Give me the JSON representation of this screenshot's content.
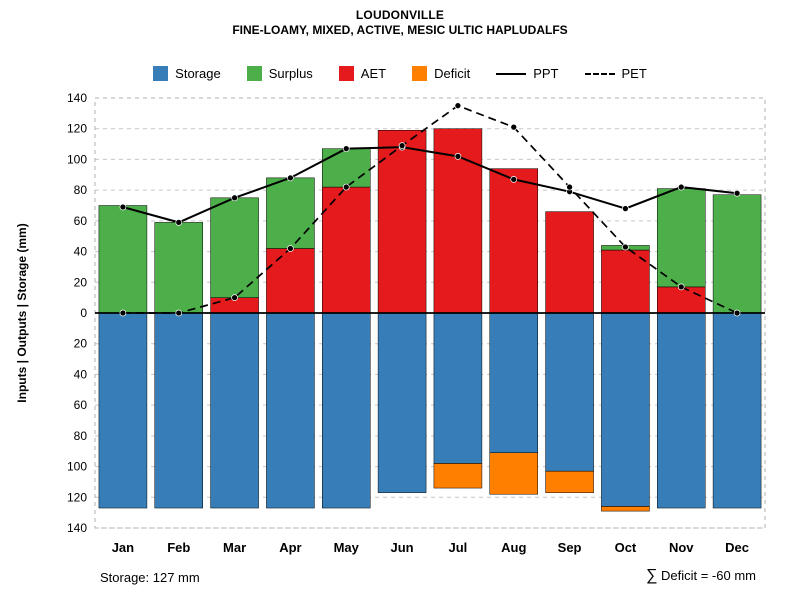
{
  "header": {
    "title": "LOUDONVILLE",
    "subtitle": "FINE-LOAMY, MIXED, ACTIVE, MESIC ULTIC HAPLUDALFS"
  },
  "legend": {
    "items": [
      {
        "label": "Storage",
        "kind": "swatch",
        "color": "#377EB8"
      },
      {
        "label": "Surplus",
        "kind": "swatch",
        "color": "#4DAF4A"
      },
      {
        "label": "AET",
        "kind": "swatch",
        "color": "#E41A1C"
      },
      {
        "label": "Deficit",
        "kind": "swatch",
        "color": "#FF7F00"
      },
      {
        "label": "PPT",
        "kind": "line",
        "style": "solid"
      },
      {
        "label": "PET",
        "kind": "line",
        "style": "dashed"
      }
    ]
  },
  "footer": {
    "storage_note": "Storage: 127 mm",
    "deficit_sigma": "∑",
    "deficit_note": " Deficit = -60 mm"
  },
  "chart_data": {
    "type": "bar",
    "title": "LOUDONVILLE",
    "subtitle": "FINE-LOAMY, MIXED, ACTIVE, MESIC ULTIC HAPLUDALFS",
    "categories": [
      "Jan",
      "Feb",
      "Mar",
      "Apr",
      "May",
      "Jun",
      "Jul",
      "Aug",
      "Sep",
      "Oct",
      "Nov",
      "Dec"
    ],
    "ylabel": "Inputs | Outputs | Storage   (mm)",
    "ylim_upper": [
      0,
      140
    ],
    "ylim_lower": [
      0,
      140
    ],
    "tick_step": 20,
    "grid": "dashed-horizontal",
    "legend_position": "top",
    "upper_stack": [
      {
        "name": "AET",
        "color": "#E41A1C",
        "values": [
          0,
          0,
          10,
          42,
          82,
          119,
          120,
          94,
          66,
          41,
          17,
          0
        ]
      },
      {
        "name": "Surplus",
        "color": "#4DAF4A",
        "values": [
          70,
          59,
          65,
          46,
          25,
          0,
          0,
          0,
          0,
          3,
          64,
          77
        ]
      }
    ],
    "lower_stack": [
      {
        "name": "Storage",
        "color": "#377EB8",
        "values": [
          127,
          127,
          127,
          127,
          127,
          117,
          98,
          91,
          103,
          126,
          127,
          127
        ]
      },
      {
        "name": "Deficit",
        "color": "#FF7F00",
        "values": [
          0,
          0,
          0,
          0,
          0,
          0,
          16,
          27,
          14,
          3,
          0,
          0
        ]
      }
    ],
    "lines": [
      {
        "name": "PPT",
        "style": "solid",
        "color": "#000000",
        "values": [
          69,
          59,
          75,
          88,
          107,
          108,
          102,
          87,
          79,
          68,
          82,
          78
        ]
      },
      {
        "name": "PET",
        "style": "dashed",
        "color": "#000000",
        "values": [
          0,
          0,
          10,
          42,
          82,
          109,
          135,
          121,
          82,
          43,
          17,
          0
        ]
      }
    ],
    "annotations": {
      "storage_capacity_mm": 127,
      "total_deficit_mm": -60
    }
  }
}
